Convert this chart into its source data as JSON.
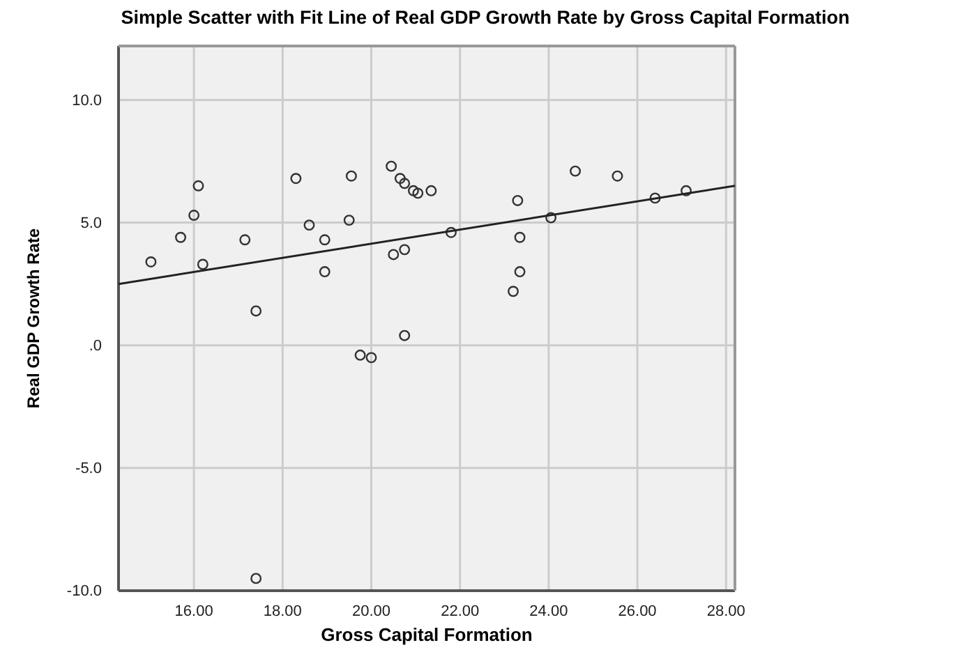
{
  "chart_data": {
    "type": "scatter",
    "title": "Simple Scatter with Fit Line of Real GDP Growth Rate by Gross Capital Formation",
    "xlabel": "Gross Capital Formation",
    "ylabel": "Real GDP Growth Rate",
    "xlim": [
      14.3,
      28.2
    ],
    "ylim": [
      -10,
      12.2
    ],
    "xticks": [
      {
        "value": 16,
        "label": "16.00"
      },
      {
        "value": 18,
        "label": "18.00"
      },
      {
        "value": 20,
        "label": "20.00"
      },
      {
        "value": 22,
        "label": "22.00"
      },
      {
        "value": 24,
        "label": "24.00"
      },
      {
        "value": 26,
        "label": "26.00"
      },
      {
        "value": 28,
        "label": "28.00"
      }
    ],
    "yticks": [
      {
        "value": -10,
        "label": "-10.0"
      },
      {
        "value": -5,
        "label": "-5.0"
      },
      {
        "value": 0,
        "label": ".0"
      },
      {
        "value": 5,
        "label": "5.0"
      },
      {
        "value": 10,
        "label": "10.0"
      }
    ],
    "grid": true,
    "marker": "circle",
    "series": [
      {
        "color": "#333333",
        "x": [
          15.03,
          15.7,
          16.0,
          16.1,
          16.2,
          17.15,
          17.4,
          18.3,
          18.6,
          18.95,
          18.95,
          19.55,
          19.5,
          19.75,
          20.0,
          20.45,
          20.65,
          20.75,
          20.75,
          20.5,
          20.75,
          20.95,
          21.05,
          21.35,
          21.8,
          23.3,
          23.35,
          23.35,
          23.2,
          24.05,
          24.6,
          25.55,
          26.4,
          27.1,
          17.4
        ],
        "values": [
          3.4,
          4.4,
          5.3,
          6.5,
          3.3,
          4.3,
          1.4,
          6.8,
          4.9,
          4.3,
          3.0,
          6.9,
          5.1,
          -0.4,
          -0.5,
          7.3,
          6.8,
          6.6,
          3.9,
          3.7,
          0.4,
          6.3,
          6.2,
          6.3,
          4.6,
          5.9,
          4.4,
          3.0,
          2.2,
          5.2,
          7.1,
          6.9,
          6.0,
          6.3,
          -9.5
        ]
      },
      {
        "type": "line",
        "marker": "none",
        "color": "#222222",
        "x": [
          14.3,
          28.2
        ],
        "values": [
          2.5,
          6.5
        ]
      }
    ]
  }
}
